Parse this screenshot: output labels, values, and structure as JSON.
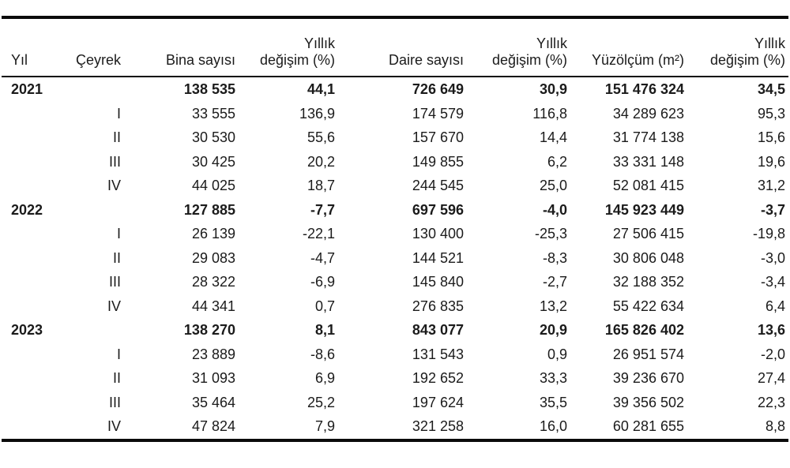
{
  "page": {
    "background_color": "#ffffff",
    "text_color": "#1b1b1b",
    "rule_color": "#0b0b0b"
  },
  "table": {
    "columns": [
      {
        "id": "yil",
        "label": "Yıl",
        "align": "left"
      },
      {
        "id": "ceyrek",
        "label": "Çeyrek",
        "align": "right"
      },
      {
        "id": "bina-sayisi",
        "label": "Bina sayısı",
        "align": "right"
      },
      {
        "id": "yillik-degisim-bina",
        "label": "Yıllık değişim (%)",
        "label_line1": "Yıllık",
        "label_line2": "değişim (%)",
        "align": "right"
      },
      {
        "id": "daire-sayisi",
        "label": "Daire sayısı",
        "align": "right"
      },
      {
        "id": "yillik-degisim-daire",
        "label": "Yıllık değişim (%)",
        "label_line1": "Yıllık",
        "label_line2": "değişim (%)",
        "align": "right"
      },
      {
        "id": "yuzolcum-m2",
        "label": "Yüzölçüm (m²)",
        "align": "right"
      },
      {
        "id": "yillik-degisim-yuzolcum",
        "label": "Yıllık değişim (%)",
        "label_line1": "Yıllık",
        "label_line2": "değişim (%)",
        "align": "right"
      }
    ],
    "rows": [
      {
        "bold": true,
        "cells": [
          "2021",
          "",
          "138 535",
          "44,1",
          "726 649",
          "30,9",
          "151 476 324",
          "34,5"
        ]
      },
      {
        "bold": false,
        "cells": [
          "",
          "I",
          "33 555",
          "136,9",
          "174 579",
          "116,8",
          "34 289 623",
          "95,3"
        ]
      },
      {
        "bold": false,
        "cells": [
          "",
          "II",
          "30 530",
          "55,6",
          "157 670",
          "14,4",
          "31 774 138",
          "15,6"
        ]
      },
      {
        "bold": false,
        "cells": [
          "",
          "III",
          "30 425",
          "20,2",
          "149 855",
          "6,2",
          "33 331 148",
          "19,6"
        ]
      },
      {
        "bold": false,
        "cells": [
          "",
          "IV",
          "44 025",
          "18,7",
          "244 545",
          "25,0",
          "52 081 415",
          "31,2"
        ]
      },
      {
        "bold": true,
        "cells": [
          "2022",
          "",
          "127 885",
          "-7,7",
          "697 596",
          "-4,0",
          "145 923 449",
          "-3,7"
        ]
      },
      {
        "bold": false,
        "cells": [
          "",
          "I",
          "26 139",
          "-22,1",
          "130 400",
          "-25,3",
          "27 506 415",
          "-19,8"
        ]
      },
      {
        "bold": false,
        "cells": [
          "",
          "II",
          "29 083",
          "-4,7",
          "144 521",
          "-8,3",
          "30 806 048",
          "-3,0"
        ]
      },
      {
        "bold": false,
        "cells": [
          "",
          "III",
          "28 322",
          "-6,9",
          "145 840",
          "-2,7",
          "32 188 352",
          "-3,4"
        ]
      },
      {
        "bold": false,
        "cells": [
          "",
          "IV",
          "44 341",
          "0,7",
          "276 835",
          "13,2",
          "55 422 634",
          "6,4"
        ]
      },
      {
        "bold": true,
        "cells": [
          "2023",
          "",
          "138 270",
          "8,1",
          "843 077",
          "20,9",
          "165 826 402",
          "13,6"
        ]
      },
      {
        "bold": false,
        "cells": [
          "",
          "I",
          "23 889",
          "-8,6",
          "131 543",
          "0,9",
          "26 951 574",
          "-2,0"
        ]
      },
      {
        "bold": false,
        "cells": [
          "",
          "II",
          "31 093",
          "6,9",
          "192 652",
          "33,3",
          "39 236 670",
          "27,4"
        ]
      },
      {
        "bold": false,
        "cells": [
          "",
          "III",
          "35 464",
          "25,2",
          "197 624",
          "35,5",
          "39 356 502",
          "22,3"
        ]
      },
      {
        "bold": false,
        "cells": [
          "",
          "IV",
          "47 824",
          "7,9",
          "321 258",
          "16,0",
          "60 281 655",
          "8,8"
        ]
      }
    ]
  },
  "chart_data": {
    "type": "table",
    "columns": [
      "Yıl",
      "Çeyrek",
      "Bina sayısı",
      "Yıllık değişim (%)",
      "Daire sayısı",
      "Yıllık değişim (%)",
      "Yüzölçüm (m²)",
      "Yıllık değişim (%)"
    ],
    "rows": [
      [
        "2021",
        "",
        "138 535",
        "44,1",
        "726 649",
        "30,9",
        "151 476 324",
        "34,5"
      ],
      [
        "",
        "I",
        "33 555",
        "136,9",
        "174 579",
        "116,8",
        "34 289 623",
        "95,3"
      ],
      [
        "",
        "II",
        "30 530",
        "55,6",
        "157 670",
        "14,4",
        "31 774 138",
        "15,6"
      ],
      [
        "",
        "III",
        "30 425",
        "20,2",
        "149 855",
        "6,2",
        "33 331 148",
        "19,6"
      ],
      [
        "",
        "IV",
        "44 025",
        "18,7",
        "244 545",
        "25,0",
        "52 081 415",
        "31,2"
      ],
      [
        "2022",
        "",
        "127 885",
        "-7,7",
        "697 596",
        "-4,0",
        "145 923 449",
        "-3,7"
      ],
      [
        "",
        "I",
        "26 139",
        "-22,1",
        "130 400",
        "-25,3",
        "27 506 415",
        "-19,8"
      ],
      [
        "",
        "II",
        "29 083",
        "-4,7",
        "144 521",
        "-8,3",
        "30 806 048",
        "-3,0"
      ],
      [
        "",
        "III",
        "28 322",
        "-6,9",
        "145 840",
        "-2,7",
        "32 188 352",
        "-3,4"
      ],
      [
        "",
        "IV",
        "44 341",
        "0,7",
        "276 835",
        "13,2",
        "55 422 634",
        "6,4"
      ],
      [
        "2023",
        "",
        "138 270",
        "8,1",
        "843 077",
        "20,9",
        "165 826 402",
        "13,6"
      ],
      [
        "",
        "I",
        "23 889",
        "-8,6",
        "131 543",
        "0,9",
        "26 951 574",
        "-2,0"
      ],
      [
        "",
        "II",
        "31 093",
        "6,9",
        "192 652",
        "33,3",
        "39 236 670",
        "27,4"
      ],
      [
        "",
        "III",
        "35 464",
        "25,2",
        "197 624",
        "35,5",
        "39 356 502",
        "22,3"
      ],
      [
        "",
        "IV",
        "47 824",
        "7,9",
        "321 258",
        "16,0",
        "60 281 655",
        "8,8"
      ]
    ],
    "notes": {
      "number_format": "space thousands separator, comma decimal separator",
      "bold_rows": "annual summary rows for 2021, 2022, 2023",
      "legend_position": "none",
      "grid": "horizontal rules only: thick top, thin under header, thick bottom"
    }
  }
}
